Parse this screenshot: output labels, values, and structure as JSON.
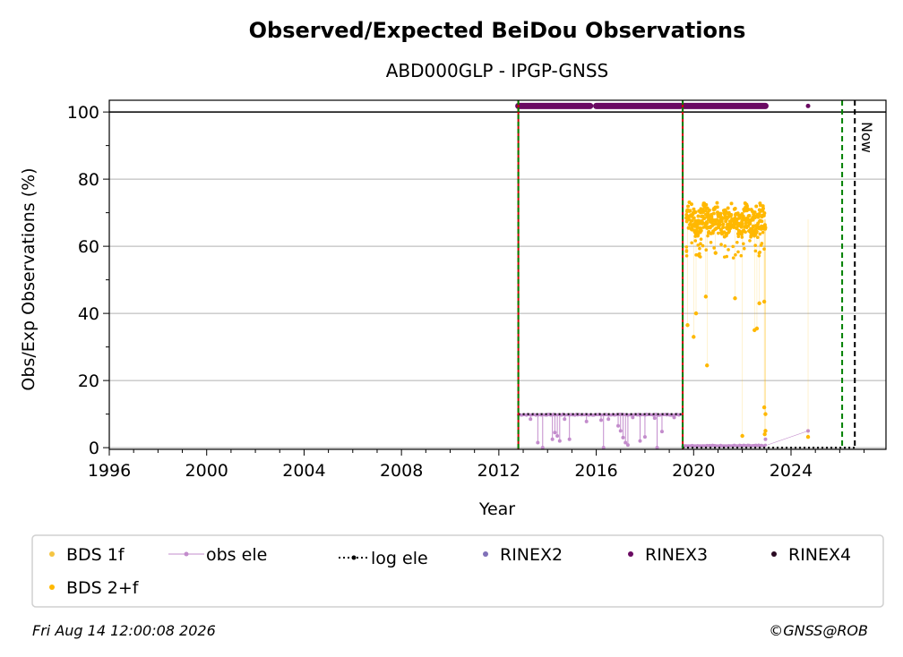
{
  "chart_data": {
    "type": "scatter",
    "title": "Observed/Expected BeiDou Observations",
    "subtitle": "ABD000GLP - IPGP-GNSS",
    "xlabel": "Year",
    "ylabel": "Obs/Exp Observations (%)",
    "xlim": [
      1996,
      2027.9
    ],
    "ylim": [
      -0.5,
      103.5
    ],
    "x_ticks": [
      1996,
      2000,
      2004,
      2008,
      2012,
      2016,
      2020,
      2024
    ],
    "x_tick_labels": [
      "1996",
      "2000",
      "2004",
      "2008",
      "2012",
      "2016",
      "2020",
      "2024"
    ],
    "y_ticks": [
      0,
      20,
      40,
      60,
      80,
      100
    ],
    "y_tick_labels": [
      "0",
      "20",
      "40",
      "60",
      "80",
      "100"
    ],
    "grid": "horizontal",
    "legend_placement": "bottom",
    "colors": {
      "bds_1f": "#f5c542",
      "bds_2f": "#ffb800",
      "obs_ele": "#c38ccc",
      "log_ele": "#000000",
      "rinex2": "#8070b8",
      "rinex3": "#6a0a62",
      "rinex4": "#2a0a22",
      "event_green": "#008000",
      "event_red": "#cc0000",
      "now_line": "#000000",
      "grid": "#b0b0b0"
    },
    "legend": [
      {
        "label": "BDS 1f",
        "color": "#f5c542",
        "marker": "dot"
      },
      {
        "label": "obs ele",
        "color": "#c38ccc",
        "marker": "line-dot"
      },
      {
        "label": "log ele",
        "color": "#000000",
        "marker": "dotted-dot"
      },
      {
        "label": "RINEX2",
        "color": "#8070b8",
        "marker": "dot"
      },
      {
        "label": "RINEX3",
        "color": "#6a0a62",
        "marker": "dot"
      },
      {
        "label": "RINEX4",
        "color": "#2a0a22",
        "marker": "dot"
      },
      {
        "label": "BDS 2+f",
        "color": "#ffb800",
        "marker": "dot"
      }
    ],
    "reference_lines": {
      "hundred_percent": 100,
      "red_green_events": [
        2012.8,
        2019.55
      ],
      "green_event": 2026.1,
      "now": 2026.62,
      "now_label": "Now"
    },
    "series": [
      {
        "id": "rinex3",
        "segments": [
          [
            2012.8,
            2015.75
          ],
          [
            2016.0,
            2019.45
          ],
          [
            2019.55,
            2022.95
          ]
        ],
        "y": 101.8,
        "extra_points": [
          [
            2024.7,
            101.8
          ]
        ]
      },
      {
        "id": "obs_ele",
        "segments": [
          {
            "x": [
              2012.8,
              2019.45
            ],
            "y": 9.8
          },
          {
            "x": [
              2019.55,
              2022.95
            ],
            "y": 0.6
          }
        ],
        "dips": [
          [
            2013.3,
            8.5
          ],
          [
            2013.6,
            1.5
          ],
          [
            2013.8,
            0.0
          ],
          [
            2014.2,
            2.5
          ],
          [
            2014.3,
            4.5
          ],
          [
            2014.4,
            3.5
          ],
          [
            2014.5,
            2.0
          ],
          [
            2014.7,
            8.5
          ],
          [
            2014.9,
            2.5
          ],
          [
            2015.6,
            7.8
          ],
          [
            2016.2,
            8.2
          ],
          [
            2016.3,
            0.0
          ],
          [
            2016.5,
            8.5
          ],
          [
            2016.9,
            6.5
          ],
          [
            2017.0,
            5.0
          ],
          [
            2017.1,
            3.0
          ],
          [
            2017.2,
            1.5
          ],
          [
            2017.3,
            0.8
          ],
          [
            2017.5,
            9.0
          ],
          [
            2017.8,
            2.0
          ],
          [
            2018.0,
            3.2
          ],
          [
            2018.4,
            8.8
          ],
          [
            2018.5,
            0.0
          ],
          [
            2018.7,
            4.8
          ],
          [
            2019.2,
            9.0
          ]
        ],
        "extra_points": [
          [
            2024.7,
            5.0
          ],
          [
            2022.95,
            2.5
          ]
        ]
      },
      {
        "id": "log_ele",
        "segments": [
          {
            "x": [
              2012.8,
              2019.5
            ],
            "y": 10.0
          },
          {
            "x": [
              2019.55,
              2026.62
            ],
            "y": 0.0
          }
        ]
      },
      {
        "id": "bds_2f",
        "band": {
          "x": [
            2019.7,
            2022.95
          ],
          "center": 68,
          "spread": 4
        },
        "outliers": [
          [
            2019.75,
            36.5
          ],
          [
            2020.0,
            33.0
          ],
          [
            2020.1,
            40.0
          ],
          [
            2020.5,
            45.0
          ],
          [
            2020.55,
            24.5
          ],
          [
            2020.9,
            58.0
          ],
          [
            2021.7,
            44.5
          ],
          [
            2022.0,
            3.5
          ],
          [
            2022.5,
            35.0
          ],
          [
            2022.6,
            35.5
          ],
          [
            2022.7,
            43.0
          ],
          [
            2022.9,
            43.5
          ],
          [
            2022.9,
            12.0
          ],
          [
            2022.95,
            10.0
          ],
          [
            2022.95,
            5.0
          ],
          [
            2022.92,
            4.0
          ],
          [
            2024.7,
            3.2
          ]
        ]
      }
    ]
  },
  "footer": {
    "timestamp": "Fri Aug 14 12:00:08 2026",
    "credit": "©GNSS@ROB"
  }
}
